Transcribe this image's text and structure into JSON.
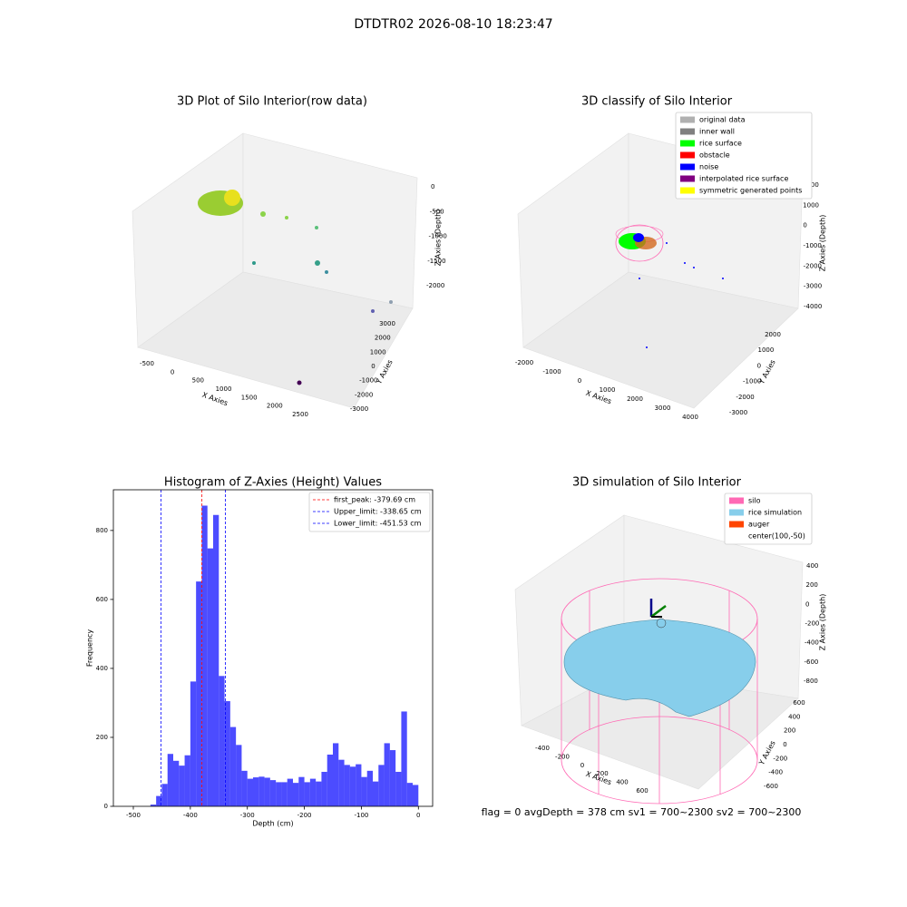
{
  "title": "DTDTR02 2026-08-10 18:23:47",
  "chart_data": [
    {
      "type": "scatter3d",
      "title": "3D Plot of Silo Interior(row data)",
      "xlabel": "X Axies",
      "ylabel": "Y Axies",
      "zlabel": "Z Axies (Depth)",
      "xlim": [
        -500,
        2500
      ],
      "xticks": [
        -500,
        0,
        500,
        1000,
        1500,
        2000,
        2500
      ],
      "ylim": [
        -3000,
        3000
      ],
      "yticks": [
        -3000,
        -2000,
        -1000,
        0,
        1000,
        2000,
        3000
      ],
      "zlim": [
        -2000,
        0
      ],
      "zticks": [
        0,
        -500,
        -1000,
        -1500,
        -2000
      ]
    },
    {
      "type": "scatter3d",
      "title": "3D classify of Silo Interior",
      "xlabel": "X Axies",
      "ylabel": "Y Axies",
      "zlabel": "Z Axies (Depth)",
      "xlim": [
        -2000,
        4000
      ],
      "xticks": [
        -2000,
        -1000,
        0,
        1000,
        2000,
        3000,
        4000
      ],
      "ylim": [
        -3000,
        2000
      ],
      "yticks": [
        -3000,
        -2000,
        -1000,
        0,
        1000,
        2000
      ],
      "zlim": [
        -4000,
        2000
      ],
      "zticks": [
        2000,
        1000,
        0,
        -1000,
        -2000,
        -3000,
        -4000
      ],
      "legend_position": "upper right",
      "legend": [
        {
          "name": "original data",
          "color": "#b0b0b0"
        },
        {
          "name": "inner wall",
          "color": "#808080"
        },
        {
          "name": "rice surface",
          "color": "#00ff00"
        },
        {
          "name": "obstacle",
          "color": "#ff0000"
        },
        {
          "name": "noise",
          "color": "#0000ff"
        },
        {
          "name": "interpolated rice surface",
          "color": "#800080"
        },
        {
          "name": "symmetric generated points",
          "color": "#ffff00"
        }
      ]
    },
    {
      "type": "histogram",
      "title": "Histogram of Z-Axies (Height) Values",
      "xlabel": "Depth (cm)",
      "ylabel": "Frequency",
      "color": "#0000ff",
      "alpha": 0.7,
      "bins": [
        -470,
        -460,
        -450,
        -440,
        -430,
        -420,
        -410,
        -400,
        -390,
        -380,
        -370,
        -360,
        -350,
        -340,
        -330,
        -320,
        -310,
        -300,
        -290,
        -280,
        -270,
        -260,
        -250,
        -240,
        -230,
        -220,
        -210,
        -200,
        -190,
        -180,
        -170,
        -160,
        -150,
        -140,
        -130,
        -120,
        -110,
        -100,
        -90,
        -80,
        -70,
        -60,
        -50,
        -40,
        -30,
        -20,
        -10,
        0
      ],
      "values": [
        5,
        30,
        65,
        152,
        132,
        118,
        148,
        362,
        652,
        872,
        748,
        845,
        378,
        305,
        230,
        178,
        103,
        80,
        84,
        86,
        83,
        76,
        70,
        70,
        80,
        68,
        85,
        70,
        80,
        72,
        100,
        150,
        183,
        135,
        120,
        115,
        122,
        85,
        103,
        72,
        120,
        183,
        163,
        100,
        275,
        68,
        62
      ],
      "xlim": [
        -535,
        25
      ],
      "xticks": [
        -500,
        -400,
        -300,
        -200,
        -100,
        0
      ],
      "ylim": [
        0,
        918
      ],
      "yticks": [
        0,
        200,
        400,
        600,
        800
      ],
      "legend_position": "upper right",
      "vlines": [
        {
          "value": -379.69,
          "label": "first_peak: -379.69 cm",
          "color": "#ff0000"
        },
        {
          "value": -338.65,
          "label": "Upper_limit: -338.65 cm",
          "color": "#0000ff"
        },
        {
          "value": -451.53,
          "label": "Lower_limit: -451.53 cm",
          "color": "#0000ff"
        }
      ]
    },
    {
      "type": "surface3d",
      "title": "3D simulation of Silo Interior",
      "xlabel": "X Axies",
      "ylabel": "Y Axies",
      "zlabel": "Z Axies (Depth)",
      "xlim": [
        -400,
        600
      ],
      "xticks": [
        -400,
        -200,
        0,
        200,
        400,
        600
      ],
      "ylim": [
        -600,
        600
      ],
      "yticks": [
        -600,
        -400,
        -200,
        0,
        200,
        400,
        600
      ],
      "zlim": [
        -800,
        400
      ],
      "zticks": [
        400,
        200,
        0,
        -200,
        -400,
        -600,
        -800
      ],
      "legend_position": "upper right",
      "legend": [
        {
          "name": "silo",
          "color": "#ff69b4"
        },
        {
          "name": "rice simulation",
          "color": "#87ceeb"
        },
        {
          "name": "auger",
          "color": "#ff4500"
        },
        {
          "name": "center(100,-50)"
        }
      ]
    }
  ],
  "footer": "flag = 0     avgDepth = 378 cm  sv1 = 700~2300  sv2 = 700~2300"
}
